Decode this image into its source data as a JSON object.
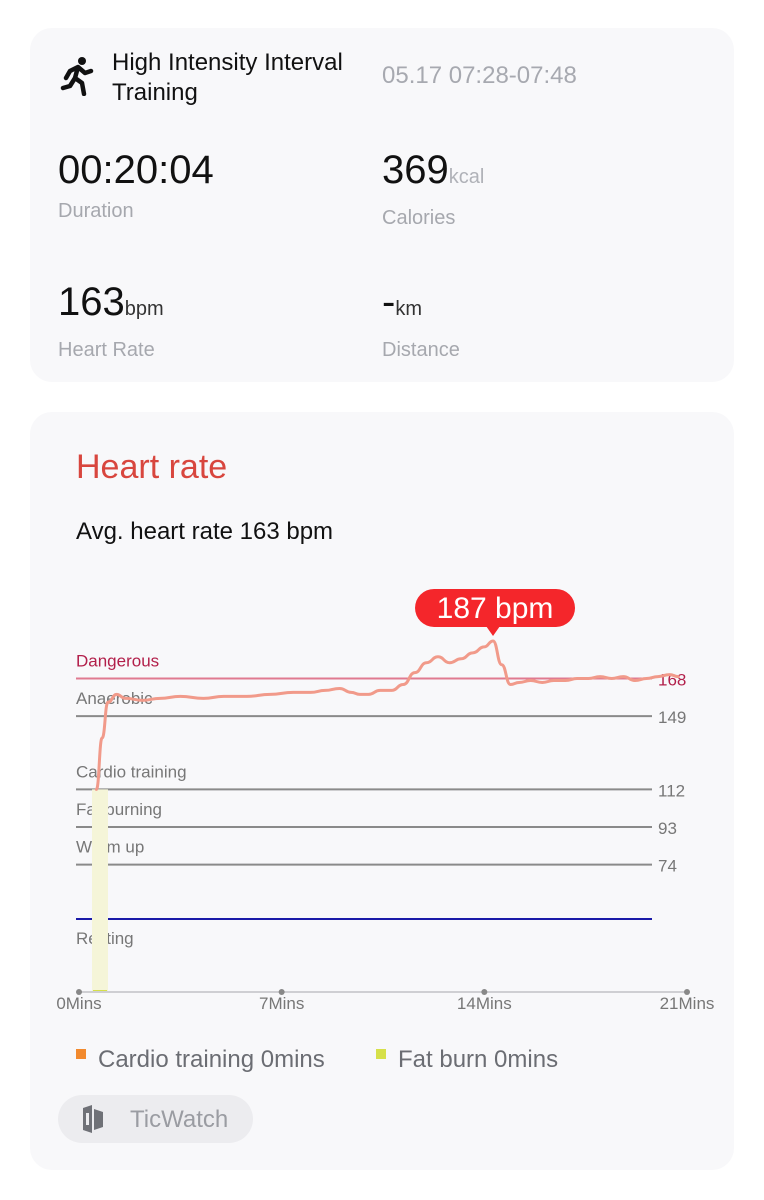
{
  "workout": {
    "title": "High Intensity Interval Training",
    "time_range": "05.17 07:28-07:48",
    "icon": "running-person-icon"
  },
  "stats": {
    "duration": {
      "value": "00:20:04",
      "unit": "",
      "label": "Duration"
    },
    "calories": {
      "value": "369",
      "unit": "kcal",
      "label": "Calories"
    },
    "heart_rate": {
      "value": "163",
      "unit": "bpm",
      "label": "Heart Rate"
    },
    "distance": {
      "value": "-",
      "unit": "km",
      "label": "Distance"
    }
  },
  "heart_rate_section": {
    "title": "Heart rate",
    "avg_text": "Avg. heart rate 163 bpm",
    "title_color": "#d8463e"
  },
  "chart_data": {
    "type": "line",
    "x_labels": [
      "0Mins",
      "7Mins",
      "14Mins",
      "21Mins"
    ],
    "x_range": [
      0,
      21
    ],
    "zones": [
      {
        "name": "Dangerous",
        "threshold": 168,
        "color": "#b21f4a",
        "line_color": "#e07a90"
      },
      {
        "name": "Anaerobic",
        "threshold": 149,
        "color": "#777777",
        "line_color": "#8a8a8a"
      },
      {
        "name": "Cardio training",
        "threshold": 112,
        "color": "#777777",
        "line_color": "#8a8a8a"
      },
      {
        "name": "Fat burning",
        "threshold": 93,
        "color": "#777777",
        "line_color": "#8a8a8a"
      },
      {
        "name": "Warm up",
        "threshold": 74,
        "color": "#777777",
        "line_color": "#8a8a8a"
      }
    ],
    "resting": {
      "name": "Resting",
      "line_color": "#1a1aa8"
    },
    "peak": {
      "label": "187 bpm",
      "value": 187,
      "x_min": 14.3
    },
    "series": [
      {
        "line_color": "#f19a8a",
        "x": [
          0.6,
          0.8,
          1.0,
          1.3,
          1.6,
          2.2,
          2.8,
          3.5,
          4.3,
          5.0,
          5.8,
          6.6,
          7.4,
          8.0,
          8.5,
          9.0,
          9.4,
          9.7,
          10.0,
          10.4,
          10.8,
          11.2,
          11.6,
          12.0,
          12.4,
          12.8,
          13.2,
          13.6,
          14.0,
          14.3,
          14.6,
          14.9,
          15.2,
          15.6,
          16.0,
          16.4,
          16.8,
          17.2,
          17.6,
          18.0,
          18.4,
          18.8,
          19.2,
          19.6,
          20.0,
          20.4,
          20.7
        ],
        "y": [
          112,
          138,
          156,
          160,
          158,
          157,
          158,
          159,
          158,
          159,
          159,
          160,
          161,
          161,
          162,
          163,
          161,
          160,
          160,
          162,
          162,
          165,
          171,
          176,
          179,
          176,
          178,
          181,
          184,
          187,
          175,
          165,
          166,
          167,
          166,
          167,
          167,
          168,
          168,
          169,
          168,
          169,
          167,
          168,
          169,
          170,
          169
        ]
      }
    ],
    "ylim": [
      46,
      190
    ]
  },
  "legend": [
    {
      "label": "Cardio training 0mins",
      "color": "#f28a2e"
    },
    {
      "label": "Fat burn 0mins",
      "color": "#d6e04a"
    }
  ],
  "brand": {
    "name": "TicWatch",
    "icon": "ticwatch-logo-icon"
  }
}
